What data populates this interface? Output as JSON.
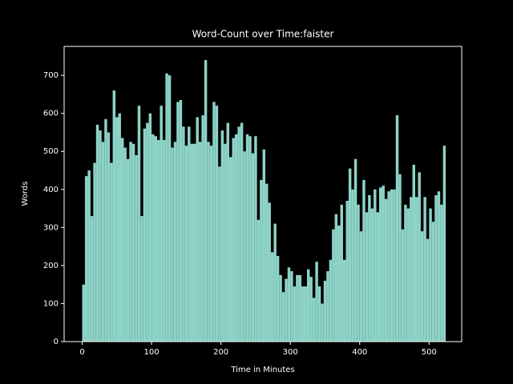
{
  "chart_data": {
    "type": "histogram",
    "title": "Word-Count over Time:faister",
    "x_label": "Time in Minutes",
    "y_label": "Words",
    "color": "#8dd3c7",
    "bins": [
      0,
      4,
      8,
      12,
      16,
      20,
      24,
      28,
      32,
      36,
      40,
      44,
      48,
      52,
      56,
      60,
      64,
      68,
      72,
      76,
      80,
      84,
      88,
      92,
      96,
      100,
      104,
      108,
      112,
      116,
      120,
      124,
      128,
      132,
      136,
      140,
      144,
      148,
      152,
      156,
      160,
      164,
      168,
      172,
      176,
      180,
      184,
      188,
      192,
      196,
      200,
      204,
      208,
      212,
      216,
      220,
      224,
      228,
      232,
      236,
      240,
      244,
      248,
      252,
      256,
      260,
      264,
      268,
      272,
      276,
      280,
      284,
      288,
      292,
      296,
      300,
      304,
      308,
      312,
      316,
      320,
      324,
      328,
      332,
      336,
      340,
      344,
      348,
      352,
      356,
      360,
      364,
      368,
      372,
      376,
      380,
      384,
      388,
      392,
      396,
      400,
      404,
      408,
      412,
      416,
      420,
      424,
      428,
      432,
      436,
      440,
      444,
      448,
      452,
      456,
      460,
      464,
      468,
      472,
      476,
      480,
      484,
      488,
      492,
      496,
      500,
      504,
      508,
      512,
      516,
      520,
      524
    ],
    "values": [
      150,
      435,
      450,
      330,
      470,
      570,
      555,
      525,
      585,
      550,
      470,
      660,
      590,
      600,
      535,
      510,
      480,
      525,
      520,
      490,
      620,
      330,
      560,
      575,
      600,
      545,
      540,
      530,
      620,
      530,
      705,
      700,
      510,
      525,
      630,
      635,
      565,
      515,
      565,
      520,
      520,
      590,
      525,
      595,
      740,
      525,
      515,
      630,
      620,
      460,
      555,
      520,
      575,
      485,
      535,
      545,
      565,
      575,
      500,
      545,
      540,
      495,
      540,
      320,
      425,
      505,
      415,
      365,
      235,
      310,
      225,
      175,
      130,
      165,
      195,
      185,
      145,
      175,
      175,
      145,
      145,
      190,
      170,
      115,
      210,
      145,
      100,
      160,
      185,
      215,
      295,
      335,
      305,
      360,
      215,
      370,
      455,
      400,
      480,
      360,
      290,
      425,
      340,
      385,
      350,
      400,
      340,
      405,
      410,
      375,
      395,
      400,
      400,
      595,
      440,
      295,
      360,
      350,
      380,
      465,
      380,
      445,
      290,
      380,
      270,
      350,
      315,
      385,
      395,
      360,
      515
    ],
    "xlim": [
      -26,
      547
    ],
    "ylim": [
      0,
      776
    ],
    "xticks": [
      0,
      100,
      200,
      300,
      400,
      500
    ],
    "yticks": [
      0,
      100,
      200,
      300,
      400,
      500,
      600,
      700
    ]
  }
}
